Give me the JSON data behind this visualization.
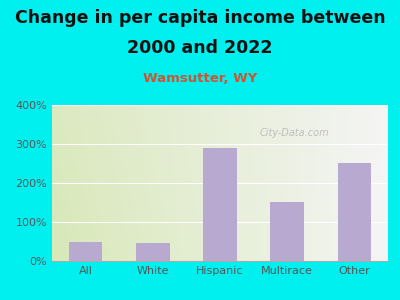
{
  "title_line1": "Change in per capita income between",
  "title_line2": "2000 and 2022",
  "subtitle": "Wamsutter, WY",
  "categories": [
    "All",
    "White",
    "Hispanic",
    "Multirace",
    "Other"
  ],
  "values": [
    50,
    47,
    290,
    152,
    252
  ],
  "bar_color": "#b8a9d0",
  "title_fontsize": 12.5,
  "subtitle_fontsize": 9.5,
  "subtitle_color": "#cc5533",
  "title_color": "#111111",
  "bg_outer_color": "#00f0f0",
  "plot_bg_left": "#d8e8b8",
  "plot_bg_right": "#f0f0f0",
  "ylim": [
    0,
    400
  ],
  "yticks": [
    0,
    100,
    200,
    300,
    400
  ],
  "ytick_labels": [
    "0%",
    "100%",
    "200%",
    "300%",
    "400%"
  ],
  "watermark": "City-Data.com",
  "grid_color": "#ffffff",
  "tick_color": "#555555"
}
